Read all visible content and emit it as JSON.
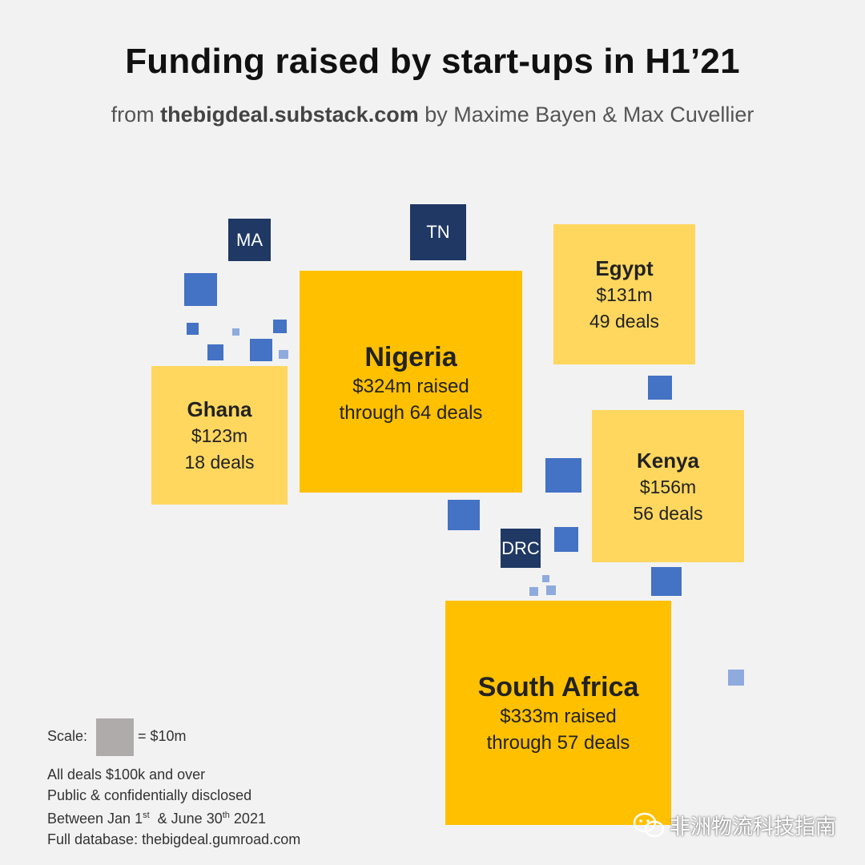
{
  "title": "Funding raised by start-ups in H1’21",
  "subtitle": {
    "prefix": "from ",
    "source": "thebigdeal.substack.com",
    "suffix": " by Maxime Bayen & Max Cuvellier"
  },
  "chart_data": {
    "type": "treemap",
    "title": "Funding raised by start-ups in H1’21",
    "countries": [
      {
        "name": "Nigeria",
        "amount_label": "$324m raised",
        "deals_label": "through 64 deals",
        "amount_musd": 324,
        "deals": 64
      },
      {
        "name": "South Africa",
        "amount_label": "$333m raised",
        "deals_label": "through 57 deals",
        "amount_musd": 333,
        "deals": 57
      },
      {
        "name": "Egypt",
        "amount_label": "$131m",
        "deals_label": "49 deals",
        "amount_musd": 131,
        "deals": 49
      },
      {
        "name": "Kenya",
        "amount_label": "$156m",
        "deals_label": "56 deals",
        "amount_musd": 156,
        "deals": 56
      },
      {
        "name": "Ghana",
        "amount_label": "$123m",
        "deals_label": "18 deals",
        "amount_musd": 123,
        "deals": 18
      }
    ],
    "small_labels": [
      "MA",
      "TN",
      "DRC"
    ],
    "scale": {
      "label": "Scale:",
      "value": "= $10m"
    }
  },
  "notes": {
    "line1": "All deals $100k and over",
    "line2": "Public & confidentially disclosed",
    "line3_a": "Between Jan 1",
    "line3_sup1": "st",
    "line3_b": "  & June 30",
    "line3_sup2": "th",
    "line3_c": " 2021",
    "line4": "Full database: thebigdeal.gumroad.com"
  },
  "watermark": "非洲物流科技指南",
  "colors": {
    "largest": "#ffc000",
    "large": "#ffd75e",
    "labelled_small": "#1f3864",
    "small": "#4472c4",
    "tiny": "#8faadc",
    "scale": "#afabab"
  }
}
